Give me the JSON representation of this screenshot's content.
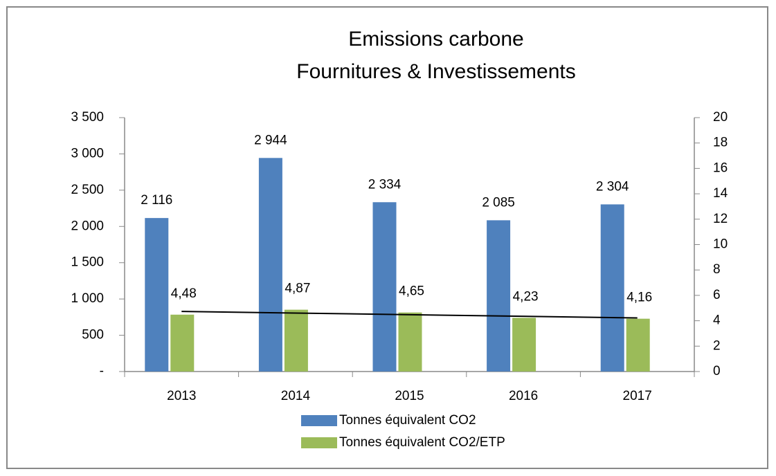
{
  "chart_data": {
    "type": "bar",
    "title": [
      "Emissions carbone",
      "Fournitures & Investissements"
    ],
    "categories": [
      "2013",
      "2014",
      "2015",
      "2016",
      "2017"
    ],
    "series": [
      {
        "name": "Tonnes équivalent CO2",
        "color": "#4f81bd",
        "values": [
          2116,
          2944,
          2334,
          2085,
          2304
        ],
        "value_labels": [
          "2 116",
          "2 944",
          "2 334",
          "2 085",
          "2 304"
        ]
      },
      {
        "name": "Tonnes équivalent CO2/ETP",
        "color": "#9bbb59",
        "axis": "y2",
        "values": [
          4.48,
          4.87,
          4.65,
          4.23,
          4.16
        ],
        "value_labels": [
          "4,48",
          "4,87",
          "4,65",
          "4,23",
          "4,16"
        ]
      }
    ],
    "ylim": [
      0,
      3500
    ],
    "yticks": [
      {
        "value": 0,
        "label": "-"
      },
      500,
      {
        "value": 1000,
        "label": "1 000"
      },
      {
        "value": 1500,
        "label": "1 500"
      },
      {
        "value": 2000,
        "label": "2 000"
      },
      {
        "value": 2500,
        "label": "2 500"
      },
      {
        "value": 3000,
        "label": "3 000"
      },
      {
        "value": 3500,
        "label": "3 500"
      }
    ],
    "y2lim": [
      0,
      20
    ],
    "y2ticks": [
      0,
      2,
      4,
      6,
      8,
      10,
      12,
      14,
      16,
      18,
      20
    ],
    "trendline": true,
    "legend": "bottom"
  }
}
